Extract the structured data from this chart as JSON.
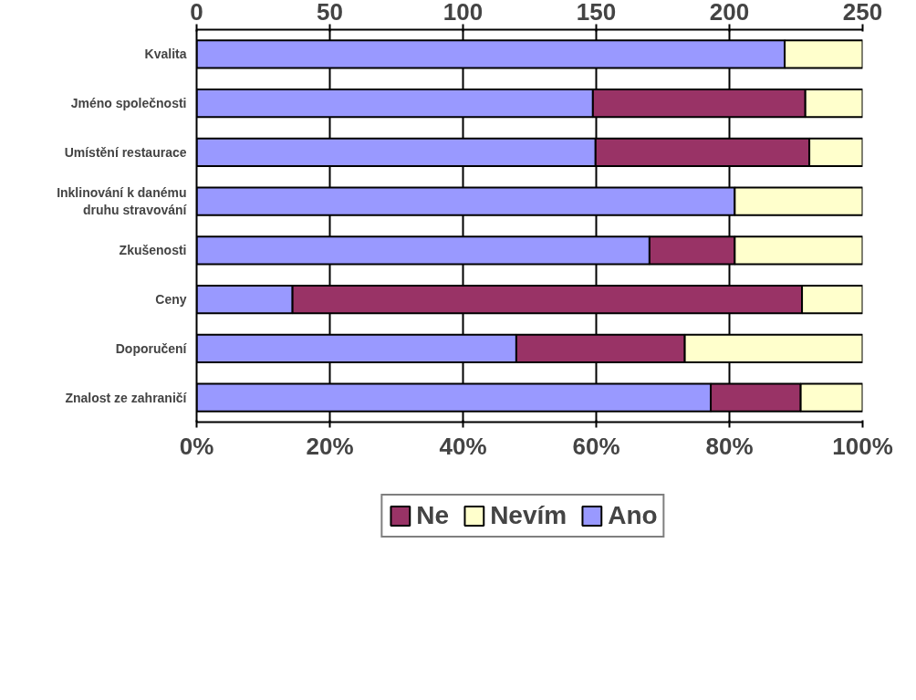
{
  "chart_data": {
    "type": "bar",
    "orientation": "horizontal",
    "stacked": true,
    "categories": [
      "Kvalita",
      "Jméno společnosti",
      "Umístění restaurace",
      "Inklinování k danému druhu stravování",
      "Zkušenosti",
      "Ceny",
      "Doporučení",
      "Znalost ze zahraničí"
    ],
    "series": [
      {
        "name": "Ano",
        "color": "#9999ff",
        "values": [
          88.3,
          59.5,
          59.9,
          80.8,
          68.0,
          14.4,
          48.0,
          77.2
        ]
      },
      {
        "name": "Ne",
        "color": "#993366",
        "values": [
          0,
          31.9,
          32.1,
          0,
          12.8,
          76.5,
          25.3,
          13.5
        ]
      },
      {
        "name": "Nevím",
        "color": "#ffffcc",
        "values": [
          11.7,
          8.6,
          8.0,
          19.2,
          19.2,
          9.1,
          26.7,
          9.3
        ]
      }
    ],
    "xlim": [
      0,
      100
    ],
    "xticks": [
      {
        "value": 0,
        "label": "0%"
      },
      {
        "value": 20,
        "label": "20%"
      },
      {
        "value": 40,
        "label": "40%"
      },
      {
        "value": 60,
        "label": "60%"
      },
      {
        "value": 80,
        "label": "80%"
      },
      {
        "value": 100,
        "label": "100%"
      }
    ],
    "x2lim": [
      0,
      250
    ],
    "x2ticks": [
      0,
      50,
      100,
      150,
      200,
      250
    ],
    "grid": "x",
    "legend": "bottom"
  }
}
